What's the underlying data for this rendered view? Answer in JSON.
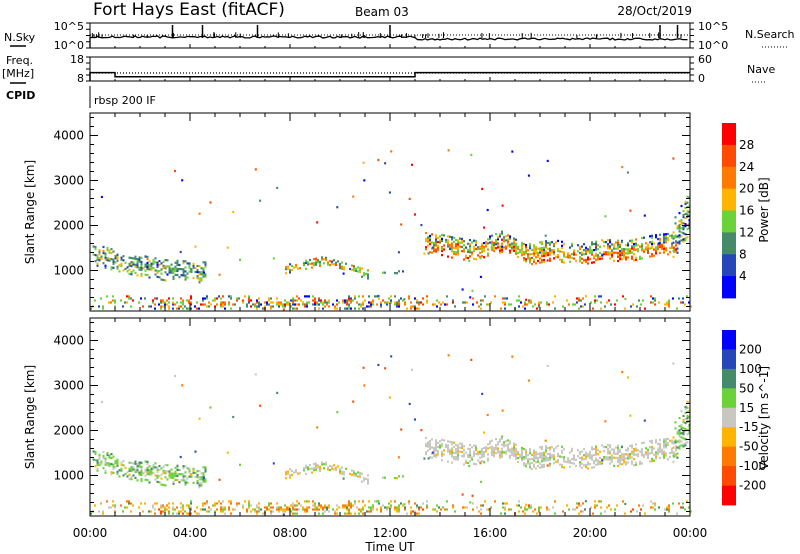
{
  "header": {
    "station": "Fort Hays East (fitACF)",
    "beam": "Beam 03",
    "date": "28/Oct/2019"
  },
  "summary_panels": {
    "nsky_label": "N.Sky",
    "nsky_ticks": [
      "10^5",
      "10^0"
    ],
    "nsearch_label": "N.Search",
    "nsearch_ticks": [
      "10^5",
      "10^0"
    ],
    "freq_label_1": "Freq.",
    "freq_label_2": "[MHz]",
    "freq_ticks": [
      "18",
      "8"
    ],
    "nave_label": "Nave",
    "nave_ticks": [
      "60",
      "0"
    ],
    "cpid_label": "CPID",
    "cpid_value": "rbsp 200 IF"
  },
  "colors": {
    "power_scale": [
      "#0000ff",
      "#2547b8",
      "#468a6c",
      "#6cd23a",
      "#ffb400",
      "#ff7a00",
      "#ff4a00",
      "#ff0000"
    ],
    "velocity_scale": [
      "#0000ff",
      "#2547b8",
      "#468a6c",
      "#6cd23a",
      "#c8c8c0",
      "#ffb400",
      "#ff7a00",
      "#ff4a00",
      "#ff0000"
    ]
  },
  "chart_data": [
    {
      "type": "heatmap",
      "panel": "power",
      "xlabel": "",
      "ylabel": "Slant Range [km]",
      "xlim_hours": [
        0,
        24
      ],
      "ylim_km": [
        100,
        4500
      ],
      "yticks": [
        "1000",
        "2000",
        "3000",
        "4000"
      ],
      "colorbar": {
        "label": "Power [dB]",
        "ticks": [
          "28",
          "24",
          "20",
          "16",
          "12",
          "8",
          "4"
        ],
        "range": [
          0,
          32
        ]
      }
    },
    {
      "type": "heatmap",
      "panel": "velocity",
      "xlabel": "Time UT",
      "ylabel": "Slant Range [km]",
      "xlim_hours": [
        0,
        24
      ],
      "ylim_km": [
        100,
        4500
      ],
      "yticks": [
        "1000",
        "2000",
        "3000",
        "4000"
      ],
      "xticks": [
        "00:00",
        "04:00",
        "08:00",
        "12:00",
        "16:00",
        "20:00",
        "00:00"
      ],
      "colorbar": {
        "label": "Velocity [m s^-1]",
        "ticks": [
          "200",
          "100",
          "50",
          "15",
          "-15",
          "-50",
          "-100",
          "-200"
        ],
        "bounds": [
          300,
          200,
          100,
          50,
          15,
          -15,
          -50,
          -100,
          -200,
          -300
        ]
      }
    }
  ],
  "echo_regions": [
    {
      "name": "early-band",
      "t": [
        0.1,
        4.6
      ],
      "center": [
        [
          0.1,
          1350
        ],
        [
          1.5,
          1150
        ],
        [
          3,
          1000
        ],
        [
          4.6,
          950
        ]
      ],
      "halfwidth": 230,
      "density": 0.55,
      "power": 11,
      "power_sd": 4,
      "vel": 25,
      "vel_sd": 25
    },
    {
      "name": "arc-0800",
      "t": [
        7.8,
        11.1
      ],
      "center": [
        [
          7.8,
          1020
        ],
        [
          9.3,
          1200
        ],
        [
          11.1,
          900
        ]
      ],
      "halfwidth": 90,
      "density": 0.7,
      "power": 15,
      "power_sd": 5,
      "vel": -5,
      "vel_sd": 18
    },
    {
      "name": "blob-1200",
      "t": [
        11.6,
        12.5
      ],
      "center": [
        [
          11.6,
          960
        ],
        [
          12.5,
          940
        ]
      ],
      "halfwidth": 60,
      "density": 0.35,
      "power": 9,
      "power_sd": 3,
      "vel": 20,
      "vel_sd": 20
    },
    {
      "name": "main-band",
      "t": [
        13.4,
        23.4
      ],
      "center": [
        [
          13.4,
          1650
        ],
        [
          14.5,
          1500
        ],
        [
          15.5,
          1420
        ],
        [
          16.5,
          1650
        ],
        [
          17.5,
          1350
        ],
        [
          18.5,
          1450
        ],
        [
          19.5,
          1330
        ],
        [
          20.5,
          1450
        ],
        [
          21.5,
          1420
        ],
        [
          22.5,
          1550
        ],
        [
          23.4,
          1600
        ]
      ],
      "halfwidth": 230,
      "density": 0.7,
      "power": 17,
      "power_sd": 6,
      "vel": 0,
      "vel_sd": 12
    },
    {
      "name": "late-rise",
      "t": [
        23.3,
        24
      ],
      "center": [
        [
          23.3,
          1700
        ],
        [
          24,
          2300
        ]
      ],
      "halfwidth": 450,
      "density": 0.55,
      "power": 12,
      "power_sd": 5,
      "vel": 25,
      "vel_sd": 30
    },
    {
      "name": "near-range",
      "t": [
        0,
        24
      ],
      "center": [
        [
          0,
          260
        ],
        [
          24,
          260
        ]
      ],
      "halfwidth": 160,
      "density": 0.45,
      "power": 16,
      "power_sd": 8,
      "vel": -20,
      "vel_sd": 45
    }
  ],
  "timeseries": {
    "nsky_spikes_hours": [
      3.3,
      4.5,
      6.7,
      12.0,
      22.8,
      23.5
    ],
    "freq_segments_mhz": [
      [
        0,
        1,
        11.5
      ],
      [
        1,
        13,
        9.8
      ],
      [
        13,
        24,
        11.5
      ]
    ],
    "nave": 20
  }
}
